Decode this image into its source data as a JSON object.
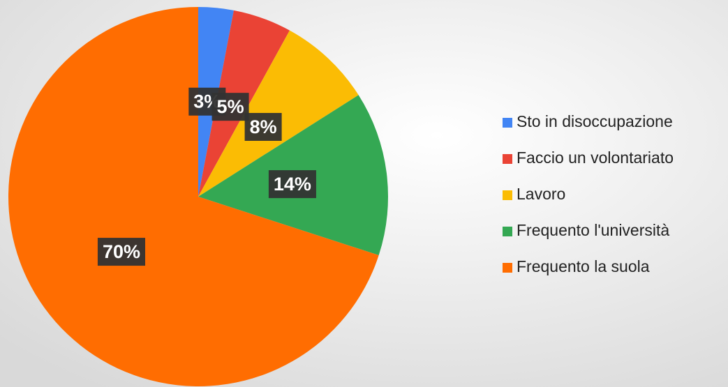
{
  "chart_data": {
    "type": "pie",
    "categories": [
      "Sto in disoccupazione",
      "Faccio un volontariato",
      "Lavoro",
      "Frequento l'università",
      "Frequento la suola"
    ],
    "values": [
      3,
      5,
      8,
      14,
      70
    ],
    "value_labels": [
      "3%",
      "5%",
      "8%",
      "14%",
      "70%"
    ],
    "colors": [
      "#4285f4",
      "#ea4335",
      "#fbbc04",
      "#34a853",
      "#ff6d01"
    ],
    "legend": "right"
  }
}
